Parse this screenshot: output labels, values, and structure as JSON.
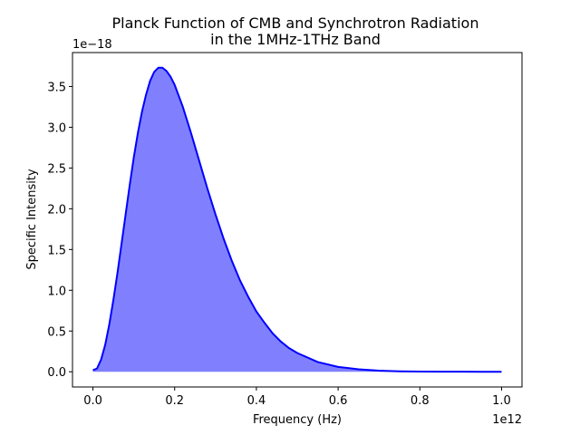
{
  "chart_data": {
    "type": "area",
    "title_line1": "Planck Function of CMB and Synchrotron Radiation",
    "title_line2": "in the 1MHz-1THz Band",
    "xlabel": "Frequency (Hz)",
    "ylabel": "Specific Intensity",
    "x_offset_label": "1e12",
    "y_offset_label": "1e−18",
    "xlim": [
      -0.05,
      1.05
    ],
    "ylim": [
      -0.1865,
      3.9165
    ],
    "x_ticks": [
      {
        "value": 0.0,
        "label": "0.0"
      },
      {
        "value": 0.2,
        "label": "0.2"
      },
      {
        "value": 0.4,
        "label": "0.4"
      },
      {
        "value": 0.6,
        "label": "0.6"
      },
      {
        "value": 0.8,
        "label": "0.8"
      },
      {
        "value": 1.0,
        "label": "1.0"
      }
    ],
    "y_ticks": [
      {
        "value": 0.0,
        "label": "0.0"
      },
      {
        "value": 0.5,
        "label": "0.5"
      },
      {
        "value": 1.0,
        "label": "1.0"
      },
      {
        "value": 1.5,
        "label": "1.5"
      },
      {
        "value": 2.0,
        "label": "2.0"
      },
      {
        "value": 2.5,
        "label": "2.5"
      },
      {
        "value": 3.0,
        "label": "3.0"
      },
      {
        "value": 3.5,
        "label": "3.5"
      }
    ],
    "series": [
      {
        "line_color": "#0000ff",
        "fill_color": "#8080ff",
        "x": [
          1e-06,
          0.01,
          0.02,
          0.03,
          0.04,
          0.05,
          0.06,
          0.07,
          0.08,
          0.09,
          0.1,
          0.11,
          0.12,
          0.13,
          0.14,
          0.15,
          0.16,
          0.17,
          0.18,
          0.19,
          0.2,
          0.22,
          0.24,
          0.26,
          0.28,
          0.3,
          0.32,
          0.34,
          0.36,
          0.38,
          0.4,
          0.42,
          0.44,
          0.46,
          0.48,
          0.5,
          0.55,
          0.6,
          0.65,
          0.7,
          0.75,
          0.8,
          0.85,
          0.9,
          0.95,
          1.0
        ],
        "y": [
          0.02,
          0.04,
          0.15,
          0.33,
          0.58,
          0.88,
          1.21,
          1.57,
          1.93,
          2.29,
          2.63,
          2.93,
          3.19,
          3.4,
          3.57,
          3.68,
          3.73,
          3.73,
          3.69,
          3.62,
          3.52,
          3.25,
          2.93,
          2.59,
          2.25,
          1.93,
          1.63,
          1.36,
          1.12,
          0.92,
          0.74,
          0.6,
          0.47,
          0.37,
          0.29,
          0.23,
          0.12,
          0.06,
          0.03,
          0.013,
          0.006,
          0.003,
          0.001,
          0.0005,
          0.0002,
          0.0001
        ],
        "fill_baseline": 0.0
      }
    ]
  }
}
